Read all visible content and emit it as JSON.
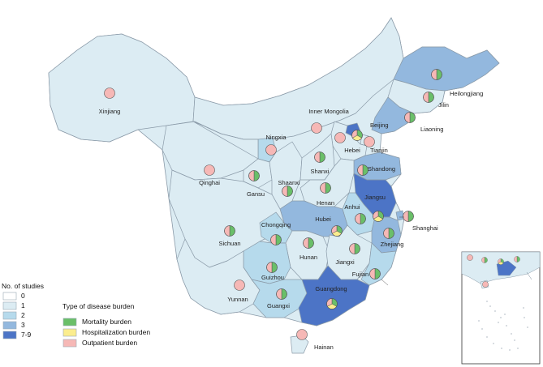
{
  "colors": {
    "studies_0": "#ffffff",
    "studies_1": "#dcecf3",
    "studies_2": "#b6daec",
    "studies_3": "#93b8de",
    "studies_7_9": "#4c74c6",
    "mortality": "#6abf69",
    "hospitalization": "#fbed8e",
    "outpatient": "#f6b8b6",
    "border": "#8a9aa8"
  },
  "legend_studies": {
    "title": "No. of studies",
    "items": [
      {
        "label": "0",
        "color": "#ffffff"
      },
      {
        "label": "1",
        "color": "#dcecf3"
      },
      {
        "label": "2",
        "color": "#b6daec"
      },
      {
        "label": "3",
        "color": "#93b8de"
      },
      {
        "label": "7-9",
        "color": "#4c74c6"
      }
    ]
  },
  "legend_burden": {
    "title": "Type of disease burden",
    "items": [
      {
        "label": "Mortality burden",
        "color": "#6abf69"
      },
      {
        "label": "Hospitalization burden",
        "color": "#fbed8e"
      },
      {
        "label": "Outpatient burden",
        "color": "#f6b8b6"
      }
    ]
  },
  "provinces": [
    {
      "name": "Xinjiang",
      "studies": "1",
      "burden": [
        "outpatient"
      ]
    },
    {
      "name": "Inner Mongolia",
      "studies": "1",
      "burden": [
        "outpatient"
      ]
    },
    {
      "name": "Heilongjiang",
      "studies": "3",
      "burden": [
        "mortality",
        "outpatient"
      ]
    },
    {
      "name": "Jilin",
      "studies": "1",
      "burden": [
        "mortality",
        "outpatient"
      ]
    },
    {
      "name": "Liaoning",
      "studies": "3",
      "burden": [
        "mortality",
        "outpatient"
      ]
    },
    {
      "name": "Beijing",
      "studies": "7-9",
      "burden": [
        "mortality",
        "hospitalization",
        "outpatient"
      ]
    },
    {
      "name": "Tianjin",
      "studies": "1",
      "burden": [
        "outpatient"
      ]
    },
    {
      "name": "Hebei",
      "studies": "1",
      "burden": [
        "outpatient"
      ]
    },
    {
      "name": "Ningxia",
      "studies": "2",
      "burden": [
        "outpatient"
      ]
    },
    {
      "name": "Qinghai",
      "studies": "1",
      "burden": [
        "outpatient"
      ]
    },
    {
      "name": "Gansu",
      "studies": "1",
      "burden": [
        "mortality",
        "outpatient"
      ]
    },
    {
      "name": "Shaanxi",
      "studies": "1",
      "burden": [
        "mortality",
        "outpatient"
      ]
    },
    {
      "name": "Shanxi",
      "studies": "1",
      "burden": [
        "mortality",
        "outpatient"
      ]
    },
    {
      "name": "Shandong",
      "studies": "3",
      "burden": [
        "mortality",
        "outpatient"
      ]
    },
    {
      "name": "Henan",
      "studies": "1",
      "burden": [
        "mortality",
        "outpatient"
      ]
    },
    {
      "name": "Jiangsu",
      "studies": "7-9",
      "burden": [
        "mortality",
        "hospitalization",
        "outpatient"
      ]
    },
    {
      "name": "Anhui",
      "studies": "2",
      "burden": [
        "mortality",
        "outpatient"
      ]
    },
    {
      "name": "Shanghai",
      "studies": "3",
      "burden": [
        "mortality",
        "outpatient"
      ]
    },
    {
      "name": "Hubei",
      "studies": "3",
      "burden": [
        "mortality",
        "hospitalization",
        "outpatient"
      ]
    },
    {
      "name": "Sichuan",
      "studies": "1",
      "burden": [
        "mortality",
        "outpatient"
      ]
    },
    {
      "name": "Chongqing",
      "studies": "2",
      "burden": [
        "mortality",
        "outpatient"
      ]
    },
    {
      "name": "Zhejiang",
      "studies": "3",
      "burden": [
        "mortality",
        "outpatient"
      ]
    },
    {
      "name": "Hunan",
      "studies": "1",
      "burden": [
        "mortality",
        "outpatient"
      ]
    },
    {
      "name": "Jiangxi",
      "studies": "1",
      "burden": [
        "mortality",
        "outpatient"
      ]
    },
    {
      "name": "Guizhou",
      "studies": "2",
      "burden": [
        "mortality",
        "outpatient"
      ]
    },
    {
      "name": "Fujian",
      "studies": "2",
      "burden": [
        "mortality",
        "outpatient"
      ]
    },
    {
      "name": "Yunnan",
      "studies": "1",
      "burden": [
        "outpatient"
      ]
    },
    {
      "name": "Guangxi",
      "studies": "2",
      "burden": [
        "mortality",
        "outpatient"
      ]
    },
    {
      "name": "Guangdong",
      "studies": "7-9",
      "burden": [
        "mortality",
        "hospitalization",
        "outpatient"
      ]
    },
    {
      "name": "Hainan",
      "studies": "1",
      "burden": [
        "outpatient"
      ]
    }
  ]
}
